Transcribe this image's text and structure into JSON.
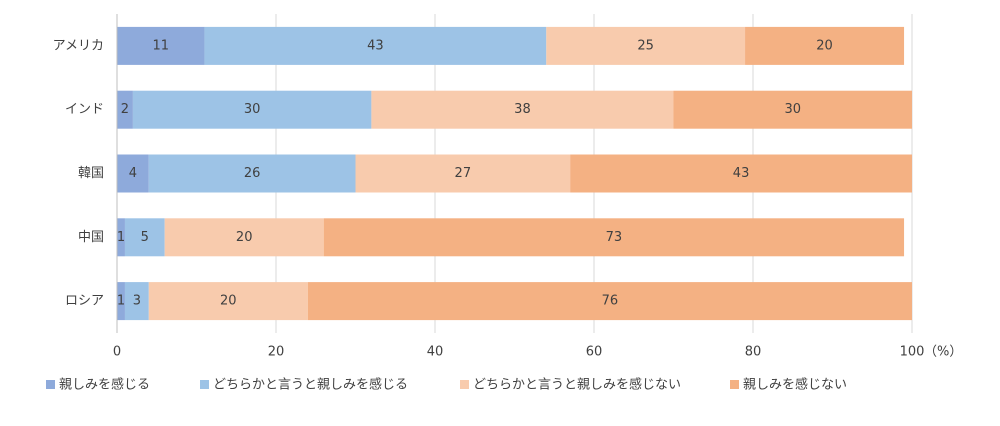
{
  "chart_data": {
    "type": "stacked-bar-horizontal",
    "categories": [
      "アメリカ",
      "インド",
      "韓国",
      "中国",
      "ロシア"
    ],
    "series": [
      {
        "name": "親しみを感じる",
        "color": "#8eaadb",
        "values": [
          11,
          2,
          4,
          1,
          1
        ]
      },
      {
        "name": "どちらかと言うと親しみを感じる",
        "color": "#9dc3e6",
        "values": [
          43,
          30,
          26,
          5,
          3
        ]
      },
      {
        "name": "どちらかと言うと親しみを感じない",
        "color": "#f8cbad",
        "values": [
          25,
          38,
          27,
          20,
          20
        ]
      },
      {
        "name": "親しみを感じない",
        "color": "#f4b183",
        "values": [
          20,
          30,
          43,
          73,
          76
        ]
      }
    ],
    "xlim": [
      0,
      100
    ],
    "xticks": [
      0,
      20,
      40,
      60,
      80,
      100
    ],
    "x_unit": "（%）",
    "grid": true
  }
}
